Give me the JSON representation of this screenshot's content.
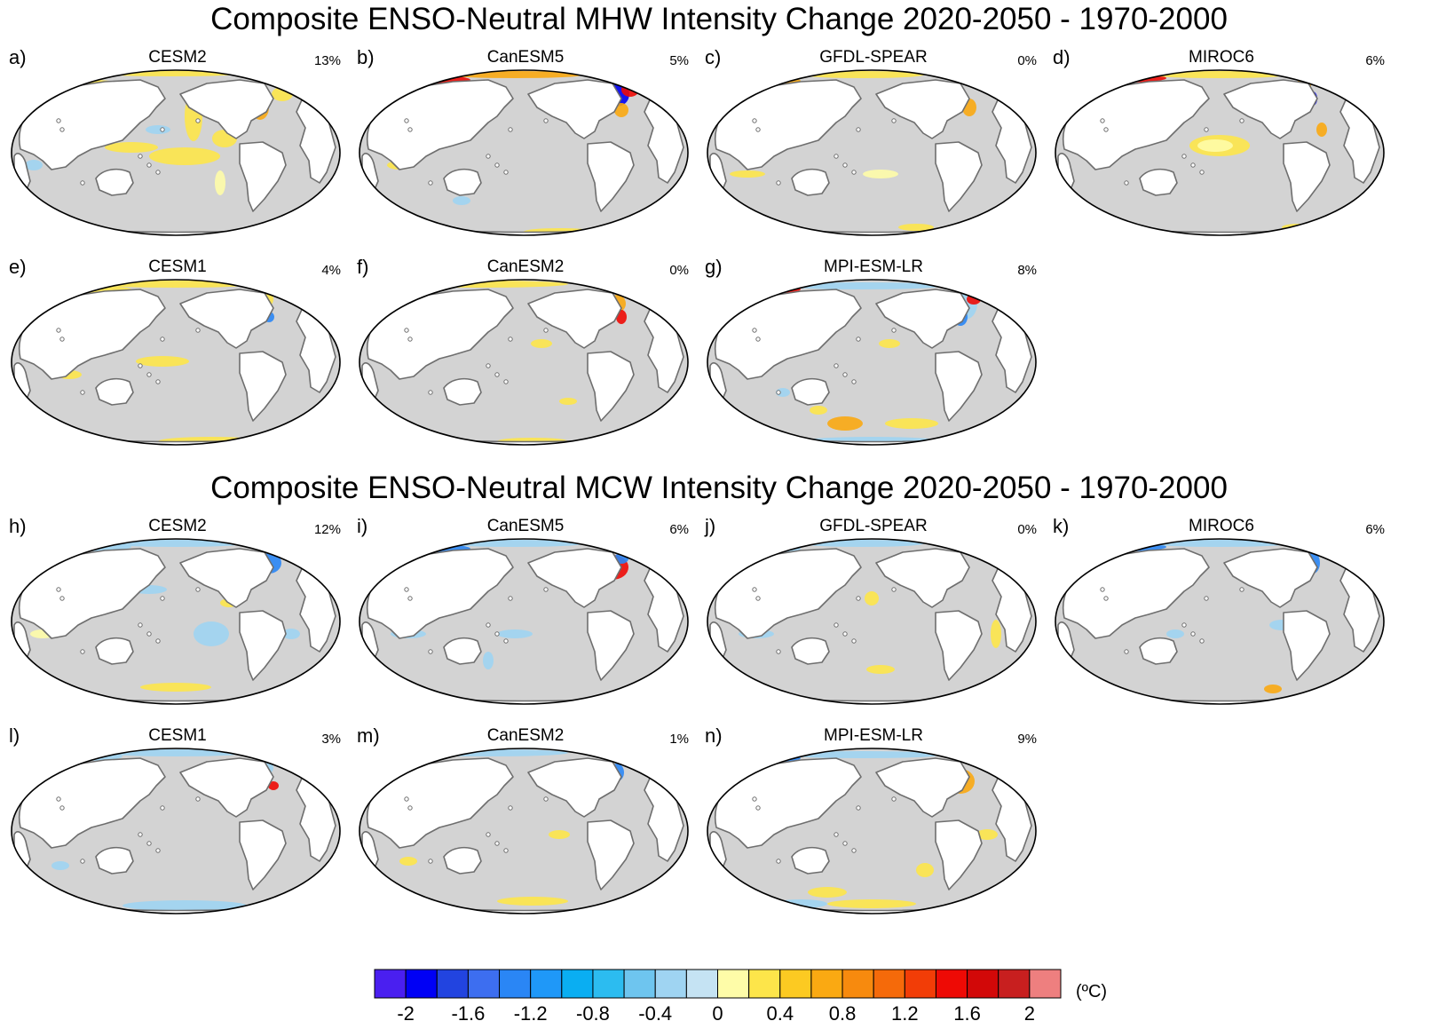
{
  "titles": {
    "mhw": "Composite ENSO-Neutral MHW Intensity Change 2020-2050 - 1970-2000",
    "mcw": "Composite ENSO-Neutral MCW Intensity Change 2020-2050 - 1970-2000"
  },
  "chart_data": {
    "type": "heatmap",
    "projection": "Robinson, Pacific-centred",
    "panels": [
      {
        "letter": "a)",
        "model": "CESM2",
        "percent": "13%",
        "group": "MHW"
      },
      {
        "letter": "b)",
        "model": "CanESM5",
        "percent": "5%",
        "group": "MHW"
      },
      {
        "letter": "c)",
        "model": "GFDL-SPEAR",
        "percent": "0%",
        "group": "MHW"
      },
      {
        "letter": "d)",
        "model": "MIROC6",
        "percent": "6%",
        "group": "MHW"
      },
      {
        "letter": "e)",
        "model": "CESM1",
        "percent": "4%",
        "group": "MHW"
      },
      {
        "letter": "f)",
        "model": "CanESM2",
        "percent": "0%",
        "group": "MHW"
      },
      {
        "letter": "g)",
        "model": "MPI-ESM-LR",
        "percent": "8%",
        "group": "MHW"
      },
      {
        "letter": "h)",
        "model": "CESM2",
        "percent": "12%",
        "group": "MCW"
      },
      {
        "letter": "i)",
        "model": "CanESM5",
        "percent": "6%",
        "group": "MCW"
      },
      {
        "letter": "j)",
        "model": "GFDL-SPEAR",
        "percent": "0%",
        "group": "MCW"
      },
      {
        "letter": "k)",
        "model": "MIROC6",
        "percent": "6%",
        "group": "MCW"
      },
      {
        "letter": "l)",
        "model": "CESM1",
        "percent": "3%",
        "group": "MCW"
      },
      {
        "letter": "m)",
        "model": "CanESM2",
        "percent": "1%",
        "group": "MCW"
      },
      {
        "letter": "n)",
        "model": "MPI-ESM-LR",
        "percent": "9%",
        "group": "MCW"
      }
    ],
    "colorbar": {
      "unit": "(ºC)",
      "range": [
        -2.2,
        2.2
      ],
      "tick_labels": [
        "-2",
        "-1.6",
        "-1.2",
        "-0.8",
        "-0.4",
        "0",
        "0.4",
        "0.8",
        "1.2",
        "1.6",
        "2"
      ],
      "tick_values": [
        -2,
        -1.6,
        -1.2,
        -0.8,
        -0.4,
        0,
        0.4,
        0.8,
        1.2,
        1.6,
        2
      ],
      "colors": [
        "#4a1ff0",
        "#0000f5",
        "#2244e0",
        "#3d6ef0",
        "#2a86f5",
        "#1f98f8",
        "#0aaef2",
        "#2cbcf0",
        "#6ec5ef",
        "#9fd4f2",
        "#c5e3f3",
        "#fefca8",
        "#fde54a",
        "#fcca22",
        "#faa912",
        "#f78a0e",
        "#f56a0a",
        "#f23d07",
        "#ee0a05",
        "#d20808",
        "#c81f1f",
        "#ee7f7f"
      ]
    },
    "anomaly_colors": {
      "yellow": "#fde54a",
      "paleyellow": "#fefca8",
      "orange": "#faa912",
      "red": "#ee0a05",
      "darkred": "#d20808",
      "lightblue": "#9fd4f2",
      "blue": "#2a86f5",
      "darkblue": "#0000f5",
      "ocean": "#d3d3d3",
      "land": "#ffffff",
      "coast": "#6e6e6e"
    }
  }
}
